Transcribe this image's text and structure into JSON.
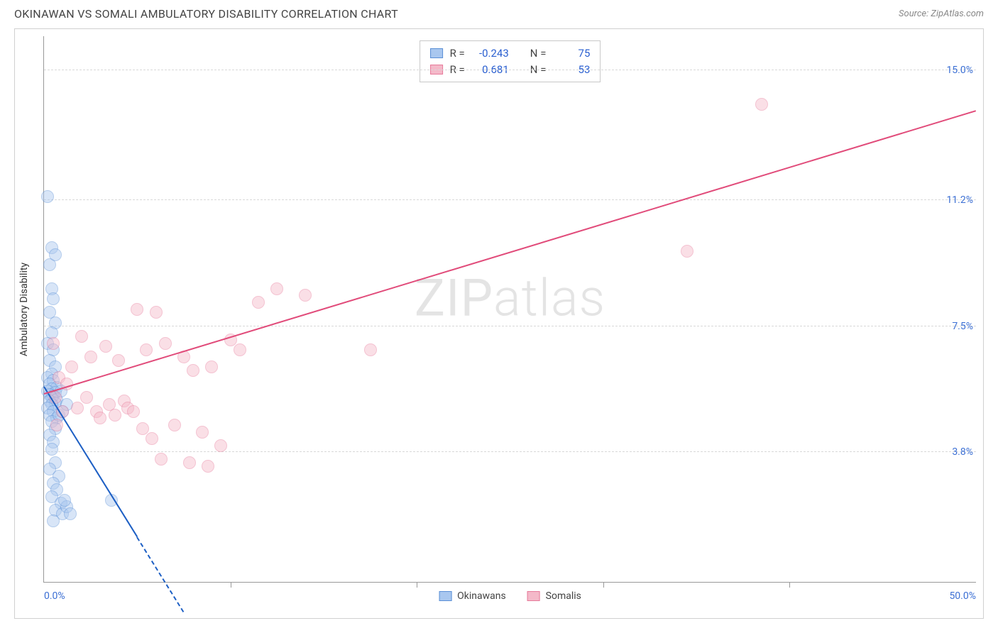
{
  "header": {
    "title": "OKINAWAN VS SOMALI AMBULATORY DISABILITY CORRELATION CHART",
    "source": "Source: ZipAtlas.com"
  },
  "watermark": {
    "part1": "ZIP",
    "part2": "atlas"
  },
  "chart": {
    "type": "scatter",
    "background_color": "#ffffff",
    "grid_color": "#d8d8d8",
    "axis_color": "#999999",
    "y_axis_title": "Ambulatory Disability",
    "xlim": [
      0,
      50
    ],
    "ylim": [
      0,
      16
    ],
    "x_ticks": [
      0,
      10,
      20,
      30,
      40,
      50
    ],
    "x_range_labels": [
      {
        "text": "0.0%",
        "x": 0,
        "align": "left"
      },
      {
        "text": "50.0%",
        "x": 50,
        "align": "right"
      }
    ],
    "y_ticks": [
      {
        "value": 3.8,
        "label": "3.8%"
      },
      {
        "value": 7.5,
        "label": "7.5%"
      },
      {
        "value": 11.2,
        "label": "11.2%"
      },
      {
        "value": 15.0,
        "label": "15.0%"
      }
    ],
    "tick_label_color": "#3b6fd4",
    "tick_label_fontsize": 14,
    "marker_radius": 9,
    "marker_opacity": 0.45,
    "series": {
      "okinawans": {
        "label": "Okinawans",
        "fill": "#a9c7ef",
        "stroke": "#5a8fd6",
        "line_color": "#1d5fc4",
        "points": [
          [
            0.2,
            11.3
          ],
          [
            0.4,
            9.8
          ],
          [
            0.3,
            9.3
          ],
          [
            0.6,
            9.6
          ],
          [
            0.4,
            8.6
          ],
          [
            0.5,
            8.3
          ],
          [
            0.3,
            7.9
          ],
          [
            0.6,
            7.6
          ],
          [
            0.4,
            7.3
          ],
          [
            0.2,
            7.0
          ],
          [
            0.5,
            6.8
          ],
          [
            0.3,
            6.5
          ],
          [
            0.6,
            6.3
          ],
          [
            0.4,
            6.1
          ],
          [
            0.2,
            6.0
          ],
          [
            0.5,
            5.9
          ],
          [
            0.3,
            5.8
          ],
          [
            0.7,
            5.7
          ],
          [
            0.4,
            5.65
          ],
          [
            0.2,
            5.6
          ],
          [
            0.6,
            5.55
          ],
          [
            0.3,
            5.5
          ],
          [
            0.5,
            5.45
          ],
          [
            0.4,
            5.4
          ],
          [
            0.7,
            5.35
          ],
          [
            0.3,
            5.3
          ],
          [
            0.6,
            5.25
          ],
          [
            0.4,
            5.2
          ],
          [
            0.2,
            5.1
          ],
          [
            0.5,
            5.0
          ],
          [
            0.3,
            4.9
          ],
          [
            0.7,
            4.8
          ],
          [
            0.4,
            4.7
          ],
          [
            0.6,
            4.5
          ],
          [
            0.3,
            4.3
          ],
          [
            0.5,
            4.1
          ],
          [
            0.8,
            4.9
          ],
          [
            1.0,
            5.0
          ],
          [
            1.2,
            5.2
          ],
          [
            0.9,
            5.6
          ],
          [
            0.4,
            3.9
          ],
          [
            0.6,
            3.5
          ],
          [
            0.3,
            3.3
          ],
          [
            0.8,
            3.1
          ],
          [
            0.5,
            2.9
          ],
          [
            0.7,
            2.7
          ],
          [
            0.4,
            2.5
          ],
          [
            0.9,
            2.3
          ],
          [
            0.6,
            2.1
          ],
          [
            1.0,
            2.0
          ],
          [
            0.5,
            1.8
          ],
          [
            1.2,
            2.2
          ],
          [
            1.4,
            2.0
          ],
          [
            1.1,
            2.4
          ],
          [
            3.6,
            2.4
          ]
        ],
        "trend": {
          "x1": 0.0,
          "y1": 5.7,
          "x2": 5.0,
          "y2": 1.3,
          "dashed_extend": {
            "x2": 7.5,
            "y2": -0.9
          }
        }
      },
      "somalis": {
        "label": "Somalis",
        "fill": "#f4b9c9",
        "stroke": "#e77a9a",
        "line_color": "#e14b7a",
        "points": [
          [
            0.5,
            7.0
          ],
          [
            0.8,
            6.0
          ],
          [
            0.6,
            5.4
          ],
          [
            1.0,
            5.0
          ],
          [
            0.7,
            4.6
          ],
          [
            1.2,
            5.8
          ],
          [
            1.5,
            6.3
          ],
          [
            1.8,
            5.1
          ],
          [
            2.0,
            7.2
          ],
          [
            2.3,
            5.4
          ],
          [
            2.5,
            6.6
          ],
          [
            2.8,
            5.0
          ],
          [
            3.0,
            4.8
          ],
          [
            3.3,
            6.9
          ],
          [
            3.5,
            5.2
          ],
          [
            3.8,
            4.9
          ],
          [
            4.0,
            6.5
          ],
          [
            4.3,
            5.3
          ],
          [
            4.5,
            5.1
          ],
          [
            4.8,
            5.0
          ],
          [
            5.0,
            8.0
          ],
          [
            5.3,
            4.5
          ],
          [
            5.5,
            6.8
          ],
          [
            5.8,
            4.2
          ],
          [
            6.0,
            7.9
          ],
          [
            6.3,
            3.6
          ],
          [
            6.5,
            7.0
          ],
          [
            7.0,
            4.6
          ],
          [
            7.5,
            6.6
          ],
          [
            7.8,
            3.5
          ],
          [
            8.0,
            6.2
          ],
          [
            8.5,
            4.4
          ],
          [
            8.8,
            3.4
          ],
          [
            9.0,
            6.3
          ],
          [
            9.5,
            4.0
          ],
          [
            10.0,
            7.1
          ],
          [
            10.5,
            6.8
          ],
          [
            11.5,
            8.2
          ],
          [
            12.5,
            8.6
          ],
          [
            14.0,
            8.4
          ],
          [
            17.5,
            6.8
          ],
          [
            34.5,
            9.7
          ],
          [
            38.5,
            14.0
          ]
        ],
        "trend": {
          "x1": 0.0,
          "y1": 5.5,
          "x2": 50.0,
          "y2": 13.8
        }
      }
    },
    "stats_box": {
      "rows": [
        {
          "series": "okinawans",
          "r_label": "R =",
          "r": "-0.243",
          "n_label": "N =",
          "n": "75"
        },
        {
          "series": "somalis",
          "r_label": "R =",
          "r": "0.681",
          "n_label": "N =",
          "n": "53"
        }
      ]
    },
    "bottom_legend": [
      {
        "series": "okinawans"
      },
      {
        "series": "somalis"
      }
    ]
  }
}
